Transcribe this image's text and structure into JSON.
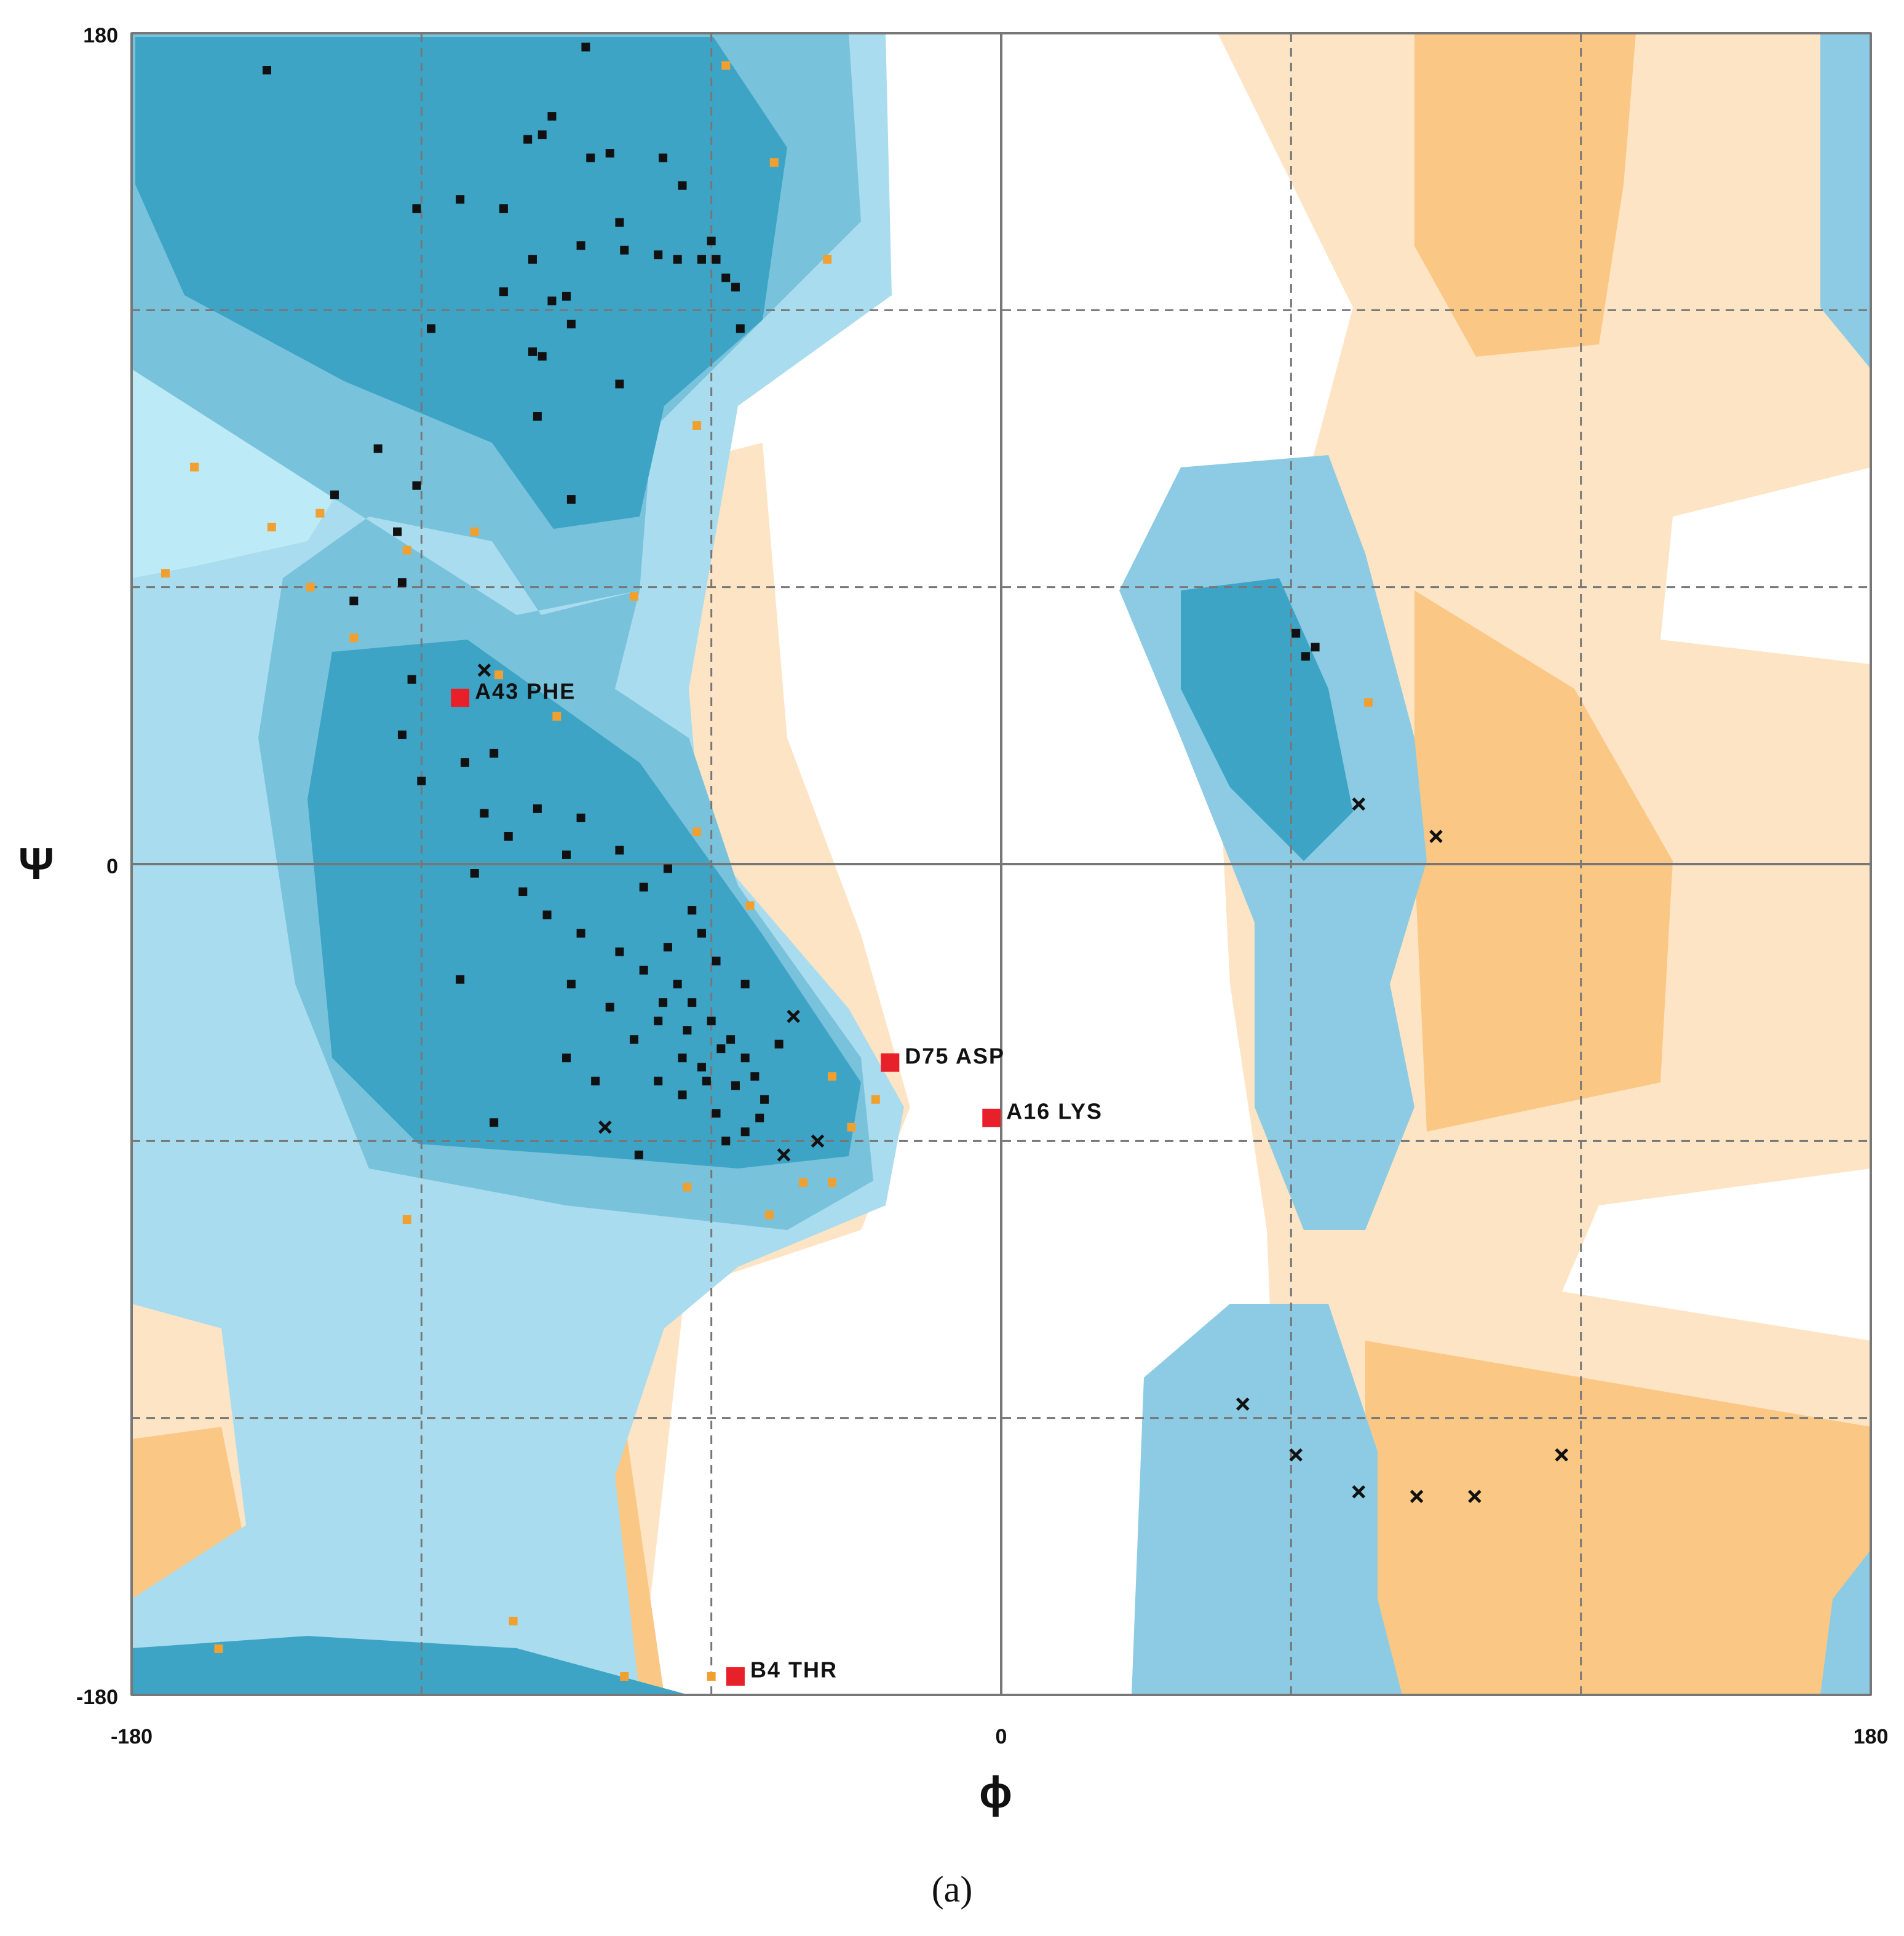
{
  "chart_data": {
    "type": "scatter",
    "x_label": "ϕ",
    "y_label": "Ψ",
    "caption": "(a)",
    "xlim": [
      -180,
      180
    ],
    "ylim": [
      -180,
      180
    ],
    "xticks": [
      -180,
      0,
      180
    ],
    "yticks": [
      -180,
      0,
      180
    ],
    "minor_xticks": [
      -120,
      -60,
      60,
      120
    ],
    "minor_yticks": [
      -120,
      -60,
      60,
      120
    ],
    "grid": true,
    "series": [
      {
        "marker": "square",
        "color": "#111111",
        "x": [
          -152,
          -86,
          -93,
          -95,
          -98,
          -81,
          -85,
          -70,
          -66,
          -112,
          -121,
          -103,
          -79,
          -87,
          -78,
          -71,
          -67,
          -60,
          -62,
          -59,
          -97,
          -57,
          -55,
          -103,
          -90,
          -93,
          -89,
          -118,
          -54,
          -97,
          -95,
          -79,
          -96,
          -129,
          -121,
          -138,
          -89,
          -125,
          -124,
          -134,
          -122,
          -124,
          61,
          65,
          63,
          -105,
          -111,
          -120,
          -107,
          -96,
          -87,
          -102,
          -90,
          -79,
          -69,
          -109,
          -99,
          -94,
          -87,
          -79,
          -74,
          -67,
          -64,
          -60,
          -56,
          -53,
          -51,
          -71,
          -76,
          -66,
          -61,
          -49,
          -89,
          -81,
          -62,
          -59,
          -69,
          -64,
          -112,
          -105,
          -75,
          -59,
          -53,
          -90,
          -84,
          -71,
          -46,
          -74,
          -53,
          -65,
          -58,
          -55,
          -70,
          -62,
          -50,
          -57,
          -66
        ],
        "values": [
          172,
          177,
          162,
          158,
          157,
          154,
          153,
          153,
          147,
          144,
          142,
          142,
          139,
          134,
          133,
          132,
          131,
          135,
          131,
          131,
          131,
          127,
          125,
          124,
          123,
          122,
          117,
          116,
          116,
          111,
          110,
          104,
          97,
          90,
          82,
          80,
          79,
          72,
          61,
          57,
          40,
          28,
          50,
          47,
          45,
          24,
          22,
          18,
          11,
          12,
          10,
          6,
          2,
          3,
          -1,
          -2,
          -6,
          -11,
          -15,
          -19,
          -23,
          -26,
          -30,
          -34,
          -38,
          -42,
          -46,
          -34,
          -38,
          -42,
          -47,
          -51,
          -26,
          -31,
          -15,
          -21,
          -18,
          -10,
          -25,
          -56,
          -63,
          -54,
          -58,
          -42,
          -47,
          -47,
          -39,
          -5,
          -26,
          -36,
          -40,
          -48,
          -30,
          -44,
          -55,
          -60,
          -50
        ]
      },
      {
        "marker": "square",
        "color": "#f0a030",
        "x": [
          -57,
          -47,
          -36,
          -63,
          -167,
          -141,
          -151,
          -109,
          -123,
          -173,
          -143,
          -76,
          -134,
          -104,
          -92,
          -63,
          -52,
          -35,
          -26,
          -31,
          -65,
          -41,
          -35,
          -48,
          -123,
          76,
          -101,
          -162,
          -78,
          -60
        ],
        "values": [
          173,
          152,
          131,
          95,
          86,
          76,
          73,
          72,
          68,
          63,
          60,
          58,
          49,
          41,
          32,
          7,
          -9,
          -46,
          -51,
          -57,
          -70,
          -69,
          -69,
          -76,
          -77,
          35,
          -164,
          -170,
          -176,
          -176
        ]
      },
      {
        "marker": "cross",
        "color": "#111111",
        "x": [
          -107,
          74,
          90,
          50,
          61,
          74,
          86,
          98,
          116,
          -43,
          -82,
          -45,
          -38
        ],
        "values": [
          42,
          13,
          6,
          -117,
          -128,
          -136,
          -137,
          -137,
          -128,
          -33,
          -57,
          -63,
          -60
        ]
      },
      {
        "marker": "square",
        "color": "#e8202a",
        "x": [
          -112,
          -23,
          -2,
          -55
        ],
        "values": [
          36,
          -43,
          -55,
          -176
        ],
        "labels": [
          "A43 PHE",
          "D75 ASP",
          "A16 LYS",
          "B4 THR"
        ]
      }
    ]
  }
}
